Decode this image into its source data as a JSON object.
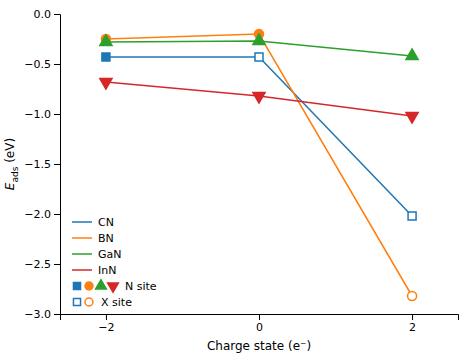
{
  "chart_data": {
    "type": "line",
    "xlabel": "Charge state (e⁻)",
    "ylabel": "Eads (eV)",
    "x": [
      -2,
      0,
      2
    ],
    "xlim": [
      -2.6,
      2.6
    ],
    "xticks": [
      {
        "value": -2,
        "label": "−2"
      },
      0,
      2
    ],
    "ylim": [
      -3.0,
      0.0
    ],
    "yticks": [
      {
        "value": 0.0,
        "label": "0.0"
      },
      {
        "value": -0.5,
        "label": "−0.5"
      },
      {
        "value": -1.0,
        "label": "−1.0"
      },
      {
        "value": -1.5,
        "label": "−1.5"
      },
      {
        "value": -2.0,
        "label": "−2.0"
      },
      {
        "value": -2.5,
        "label": "−2.5"
      },
      {
        "value": -3.0,
        "label": "−3.0"
      }
    ],
    "legend": "lower left",
    "series": [
      {
        "name": "CN",
        "marker": "square",
        "values": [
          -0.43,
          -0.43,
          -2.02
        ],
        "sites": [
          "N site",
          "X site",
          "X site"
        ]
      },
      {
        "name": "BN",
        "marker": "circle",
        "values": [
          -0.25,
          -0.2,
          -2.82
        ],
        "sites": [
          "N site",
          "N site",
          "X site"
        ]
      },
      {
        "name": "GaN",
        "marker": "triangle-up",
        "values": [
          -0.28,
          -0.27,
          -0.42
        ],
        "sites": [
          "N site",
          "N site",
          "N site"
        ]
      },
      {
        "name": "InN",
        "marker": "triangle-down",
        "values": [
          -0.68,
          -0.82,
          -1.02
        ],
        "sites": [
          "N site",
          "N site",
          "N site"
        ]
      }
    ]
  }
}
